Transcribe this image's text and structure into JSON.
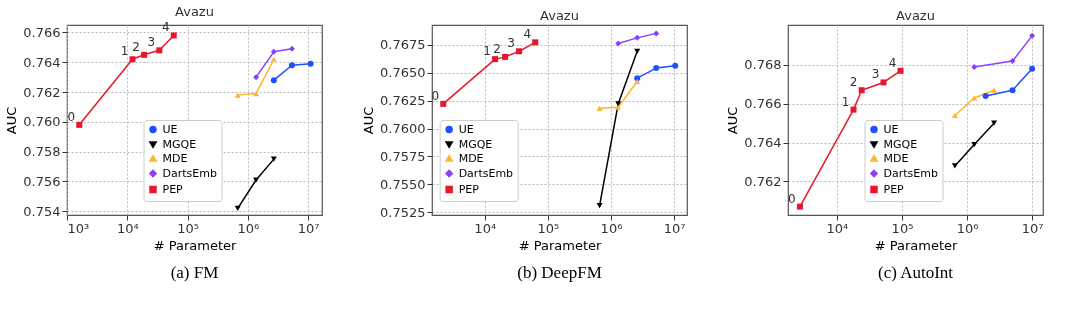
{
  "chart_data": [
    {
      "type": "line",
      "title": "Avazu",
      "xlabel": "# Parameter",
      "ylabel": "AUC",
      "log": "x",
      "grid": true,
      "legend": "bottom",
      "xlim": [
        1000,
        17000000
      ],
      "xticks": [
        {
          "value": 1000,
          "label": "10³"
        },
        {
          "value": 10000,
          "label": "10⁴"
        },
        {
          "value": 100000,
          "label": "10⁵"
        },
        {
          "value": 1000000,
          "label": "10⁶"
        },
        {
          "value": 10000000,
          "label": "10⁷"
        }
      ],
      "ylim": [
        0.75375,
        0.7665
      ],
      "yticks": [
        0.754,
        0.756,
        0.758,
        {
          "value": 0.76,
          "label": "0.760"
        },
        0.762,
        0.764,
        0.766
      ],
      "series": [
        {
          "name": "UE",
          "color": "#1f4fff",
          "marker": "circle",
          "x": [
            2700000,
            5400000,
            11000000
          ],
          "values": [
            0.7628,
            0.7638,
            0.7639
          ]
        },
        {
          "name": "MGQE",
          "color": "#000000",
          "marker": "triangle_down",
          "x": [
            680000,
            1370000,
            2700000
          ],
          "values": [
            0.7542,
            0.7561,
            0.7575
          ]
        },
        {
          "name": "MDE",
          "color": "#ffb52e",
          "marker": "triangle",
          "x": [
            680000,
            1370000,
            2700000
          ],
          "values": [
            0.7618,
            0.7619,
            0.7642
          ]
        },
        {
          "name": "DartsEmb",
          "color": "#8a3ffc",
          "marker": "diamond",
          "x": [
            1370000,
            2700000,
            5400000
          ],
          "values": [
            0.763,
            0.7647,
            0.7649
          ]
        },
        {
          "name": "PEP",
          "color": "#e8162d",
          "marker": "square",
          "x": [
            1600,
            12200,
            19000,
            34000,
            59000
          ],
          "values": [
            0.7598,
            0.7642,
            0.7645,
            0.7648,
            0.7658
          ]
        }
      ],
      "annotations": [
        {
          "text": "0",
          "x": 1600,
          "y": 0.7598
        },
        {
          "text": "1",
          "x": 12200,
          "y": 0.7642
        },
        {
          "text": "2",
          "x": 19000,
          "y": 0.7645
        },
        {
          "text": "3",
          "x": 34000,
          "y": 0.7648
        },
        {
          "text": "4",
          "x": 59000,
          "y": 0.7658
        },
        "(a) FM"
      ]
    },
    {
      "type": "line",
      "title": "Avazu",
      "xlabel": "# Parameter",
      "ylabel": "AUC",
      "log": "x",
      "grid": true,
      "legend": "bottom left",
      "xlim": [
        1460,
        16000000
      ],
      "xticks": [
        {
          "value": 10000,
          "label": "10⁴"
        },
        {
          "value": 100000,
          "label": "10⁵"
        },
        {
          "value": 1000000,
          "label": "10⁶"
        },
        {
          "value": 10000000,
          "label": "10⁷"
        }
      ],
      "ylim": [
        0.75227,
        0.76925
      ],
      "yticks": [
        0.7525,
        {
          "value": 0.755,
          "label": "0.7550"
        },
        0.7575,
        {
          "value": 0.76,
          "label": "0.7600"
        },
        0.7625,
        {
          "value": 0.765,
          "label": "0.7650"
        },
        0.7675
      ],
      "series": [
        {
          "name": "UE",
          "color": "#1f4fff",
          "marker": "circle",
          "x": [
            2600000,
            5200000,
            10400000
          ],
          "values": [
            0.7645,
            0.7654,
            0.7656
          ]
        },
        {
          "name": "MGQE",
          "color": "#000000",
          "marker": "triangle_down",
          "x": [
            660000,
            1300000,
            2600000
          ],
          "values": [
            0.7531,
            0.7622,
            0.7669
          ]
        },
        {
          "name": "MDE",
          "color": "#ffb52e",
          "marker": "triangle",
          "x": [
            660000,
            1300000,
            2600000
          ],
          "values": [
            0.7618,
            0.7619,
            0.7642
          ]
        },
        {
          "name": "DartsEmb",
          "color": "#8a3ffc",
          "marker": "diamond",
          "x": [
            1300000,
            2600000,
            5200000
          ],
          "values": [
            0.7676,
            0.7681,
            0.7685
          ]
        },
        {
          "name": "PEP",
          "color": "#e8162d",
          "marker": "square",
          "x": [
            2200,
            14600,
            21000,
            35000,
            63000
          ],
          "values": [
            0.7622,
            0.7662,
            0.7664,
            0.7669,
            0.7677
          ]
        }
      ],
      "annotations": [
        {
          "text": "0",
          "x": 2200,
          "y": 0.7622
        },
        {
          "text": "1",
          "x": 14600,
          "y": 0.7662
        },
        {
          "text": "2",
          "x": 21000,
          "y": 0.7664
        },
        {
          "text": "3",
          "x": 35000,
          "y": 0.7669
        },
        {
          "text": "4",
          "x": 63000,
          "y": 0.7677
        },
        "(b) DeepFM"
      ]
    },
    {
      "type": "line",
      "title": "Avazu",
      "xlabel": "# Parameter",
      "ylabel": "AUC",
      "log": "x",
      "grid": true,
      "legend": "bottom",
      "xlim": [
        1770,
        14700000
      ],
      "xticks": [
        {
          "value": 10000,
          "label": "10⁴"
        },
        {
          "value": 100000,
          "label": "10⁵"
        },
        {
          "value": 1000000,
          "label": "10⁶"
        },
        {
          "value": 10000000,
          "label": "10⁷"
        }
      ],
      "ylim": [
        0.76027,
        0.77006
      ],
      "yticks": [
        0.762,
        0.764,
        0.766,
        0.768
      ],
      "series": [
        {
          "name": "UE",
          "color": "#1f4fff",
          "marker": "circle",
          "x": [
            1930000,
            5000000,
            10000000
          ],
          "values": [
            0.7664,
            0.7667,
            0.7678
          ]
        },
        {
          "name": "MGQE",
          "color": "#000000",
          "marker": "triangle_down",
          "x": [
            650000,
            1290000,
            2600000
          ],
          "values": [
            0.7628,
            0.7639,
            0.765
          ]
        },
        {
          "name": "MDE",
          "color": "#ffb52e",
          "marker": "triangle",
          "x": [
            650000,
            1290000,
            2600000
          ],
          "values": [
            0.7654,
            0.7663,
            0.7667
          ]
        },
        {
          "name": "DartsEmb",
          "color": "#8a3ffc",
          "marker": "diamond",
          "x": [
            1290000,
            5000000,
            10000000
          ],
          "values": [
            0.7679,
            0.7682,
            0.7695
          ]
        },
        {
          "name": "PEP",
          "color": "#e8162d",
          "marker": "square",
          "x": [
            2700,
            18000,
            24000,
            52000,
            95000
          ],
          "values": [
            0.7607,
            0.7657,
            0.7667,
            0.7671,
            0.7677
          ]
        }
      ],
      "annotations": [
        {
          "text": "0",
          "x": 2700,
          "y": 0.7607
        },
        {
          "text": "1",
          "x": 18000,
          "y": 0.7657
        },
        {
          "text": "2",
          "x": 24000,
          "y": 0.7667
        },
        {
          "text": "3",
          "x": 52000,
          "y": 0.7671
        },
        {
          "text": "4",
          "x": 95000,
          "y": 0.7677
        },
        "(c) AutoInt"
      ]
    }
  ]
}
